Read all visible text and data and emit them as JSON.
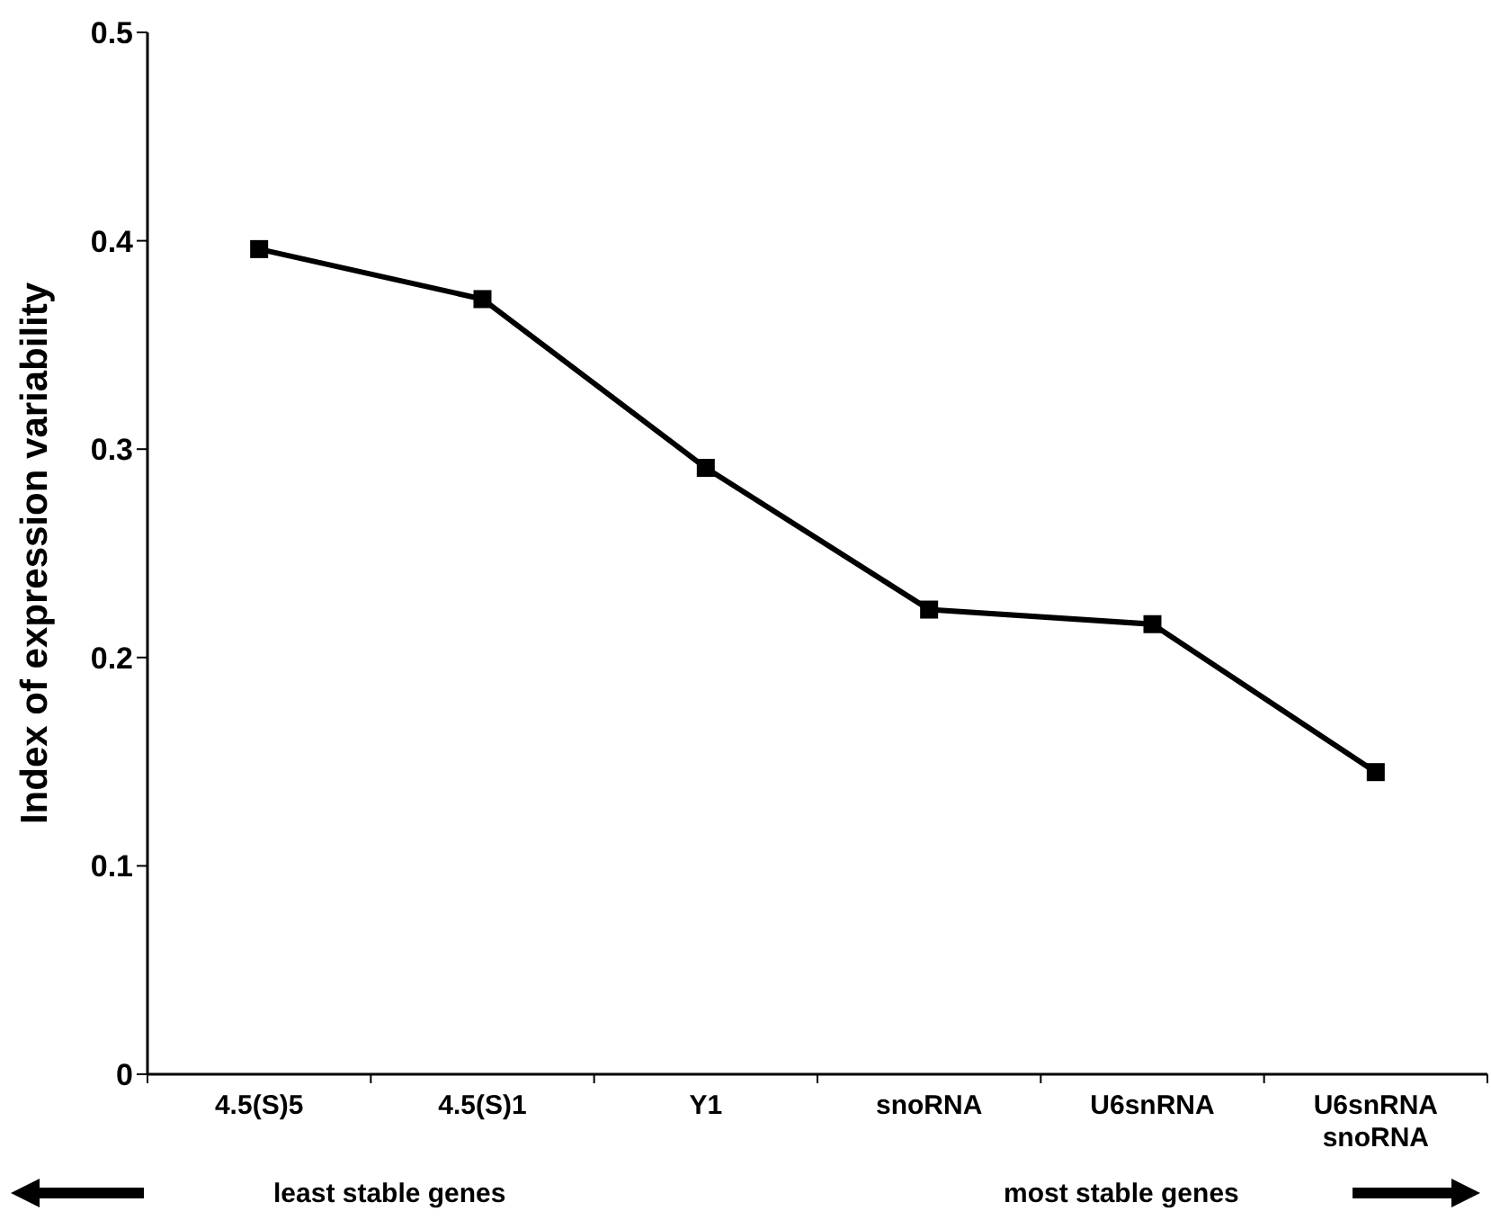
{
  "chart_data": {
    "type": "line",
    "ylabel": "Index of expression variability",
    "categories": [
      "4.5(S)5",
      "4.5(S)1",
      "Y1",
      "snoRNA",
      "U6snRNA",
      "U6snRNA\nsnoRNA"
    ],
    "series": [
      {
        "color": "#000000",
        "values": [
          0.396,
          0.372,
          0.291,
          0.223,
          0.216,
          0.145
        ]
      }
    ],
    "ylim": [
      0,
      0.5
    ],
    "yticks": [
      0,
      0.1,
      0.2,
      0.3,
      0.4,
      0.5
    ],
    "grid": false,
    "marker": "square",
    "line_style": "solid",
    "annotations": [
      "least stable genes",
      "most stable genes"
    ]
  }
}
